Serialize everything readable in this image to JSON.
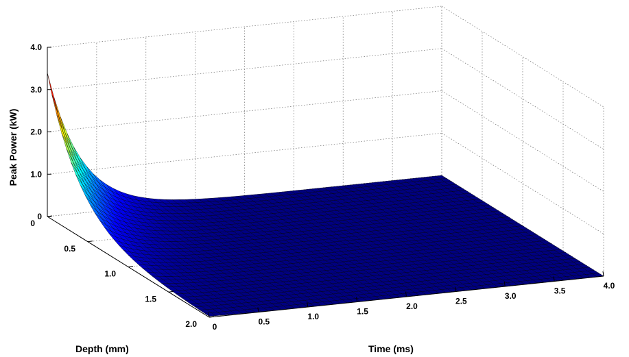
{
  "chart_data": {
    "type": "surface",
    "title": "",
    "xlabel": "Time (ms)",
    "ylabel": "Depth (mm)",
    "zlabel": "Peak Power (kW)",
    "xlim": [
      0,
      4
    ],
    "ylim": [
      0,
      2
    ],
    "zlim": [
      0,
      4
    ],
    "x_ticks": [
      "0",
      "0.5",
      "1.0",
      "1.5",
      "2.0",
      "2.5",
      "3.0",
      "3.5",
      "4.0"
    ],
    "y_ticks": [
      "0",
      "0.5",
      "1.0",
      "1.5",
      "2.0"
    ],
    "z_ticks": [
      "0",
      "1.0",
      "2.0",
      "3.0",
      "4.0"
    ],
    "surface": {
      "description_of_values": "Peak power decays exponentially with time and depth",
      "peak_at_origin": 3.4,
      "time_decay_constant_ms": 0.35,
      "depth_decay_constant_mm": 0.4
    },
    "colormap": "jet",
    "grid": true
  }
}
